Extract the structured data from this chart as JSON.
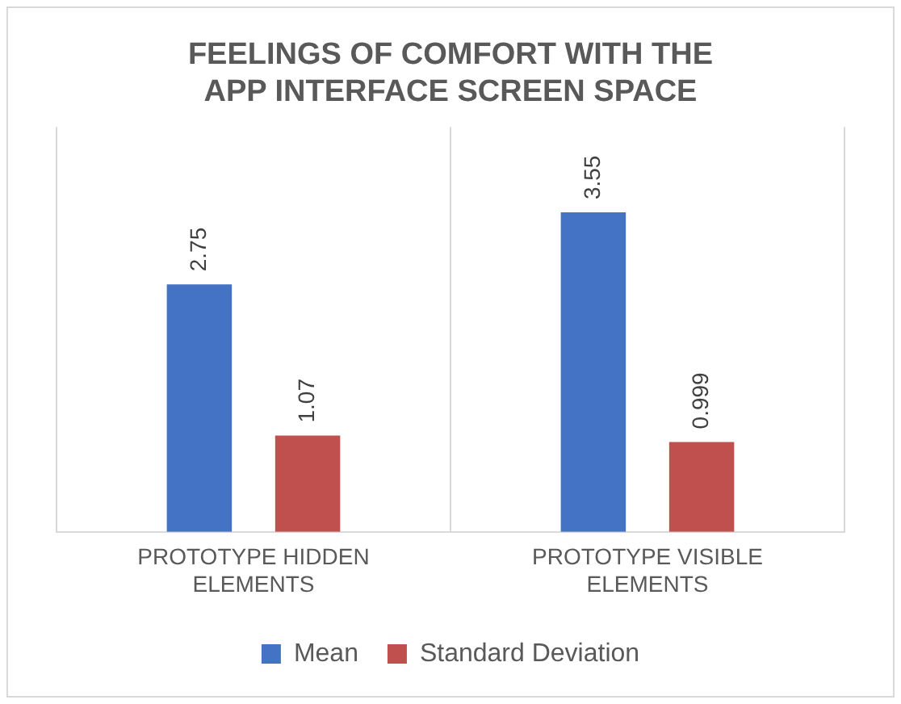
{
  "chart_data": {
    "type": "bar",
    "title": "FEELINGS OF COMFORT WITH THE APP INTERFACE SCREEN SPACE",
    "categories": [
      "PROTOTYPE HIDDEN ELEMENTS",
      "PROTOTYPE VISIBLE ELEMENTS"
    ],
    "series": [
      {
        "name": "Mean",
        "color": "#4472c4",
        "values": [
          2.75,
          3.55
        ]
      },
      {
        "name": "Standard Deviation",
        "color": "#c0504d",
        "values": [
          1.07,
          0.999
        ]
      }
    ],
    "data_labels": true,
    "grid": "x",
    "legend": "bottom"
  }
}
